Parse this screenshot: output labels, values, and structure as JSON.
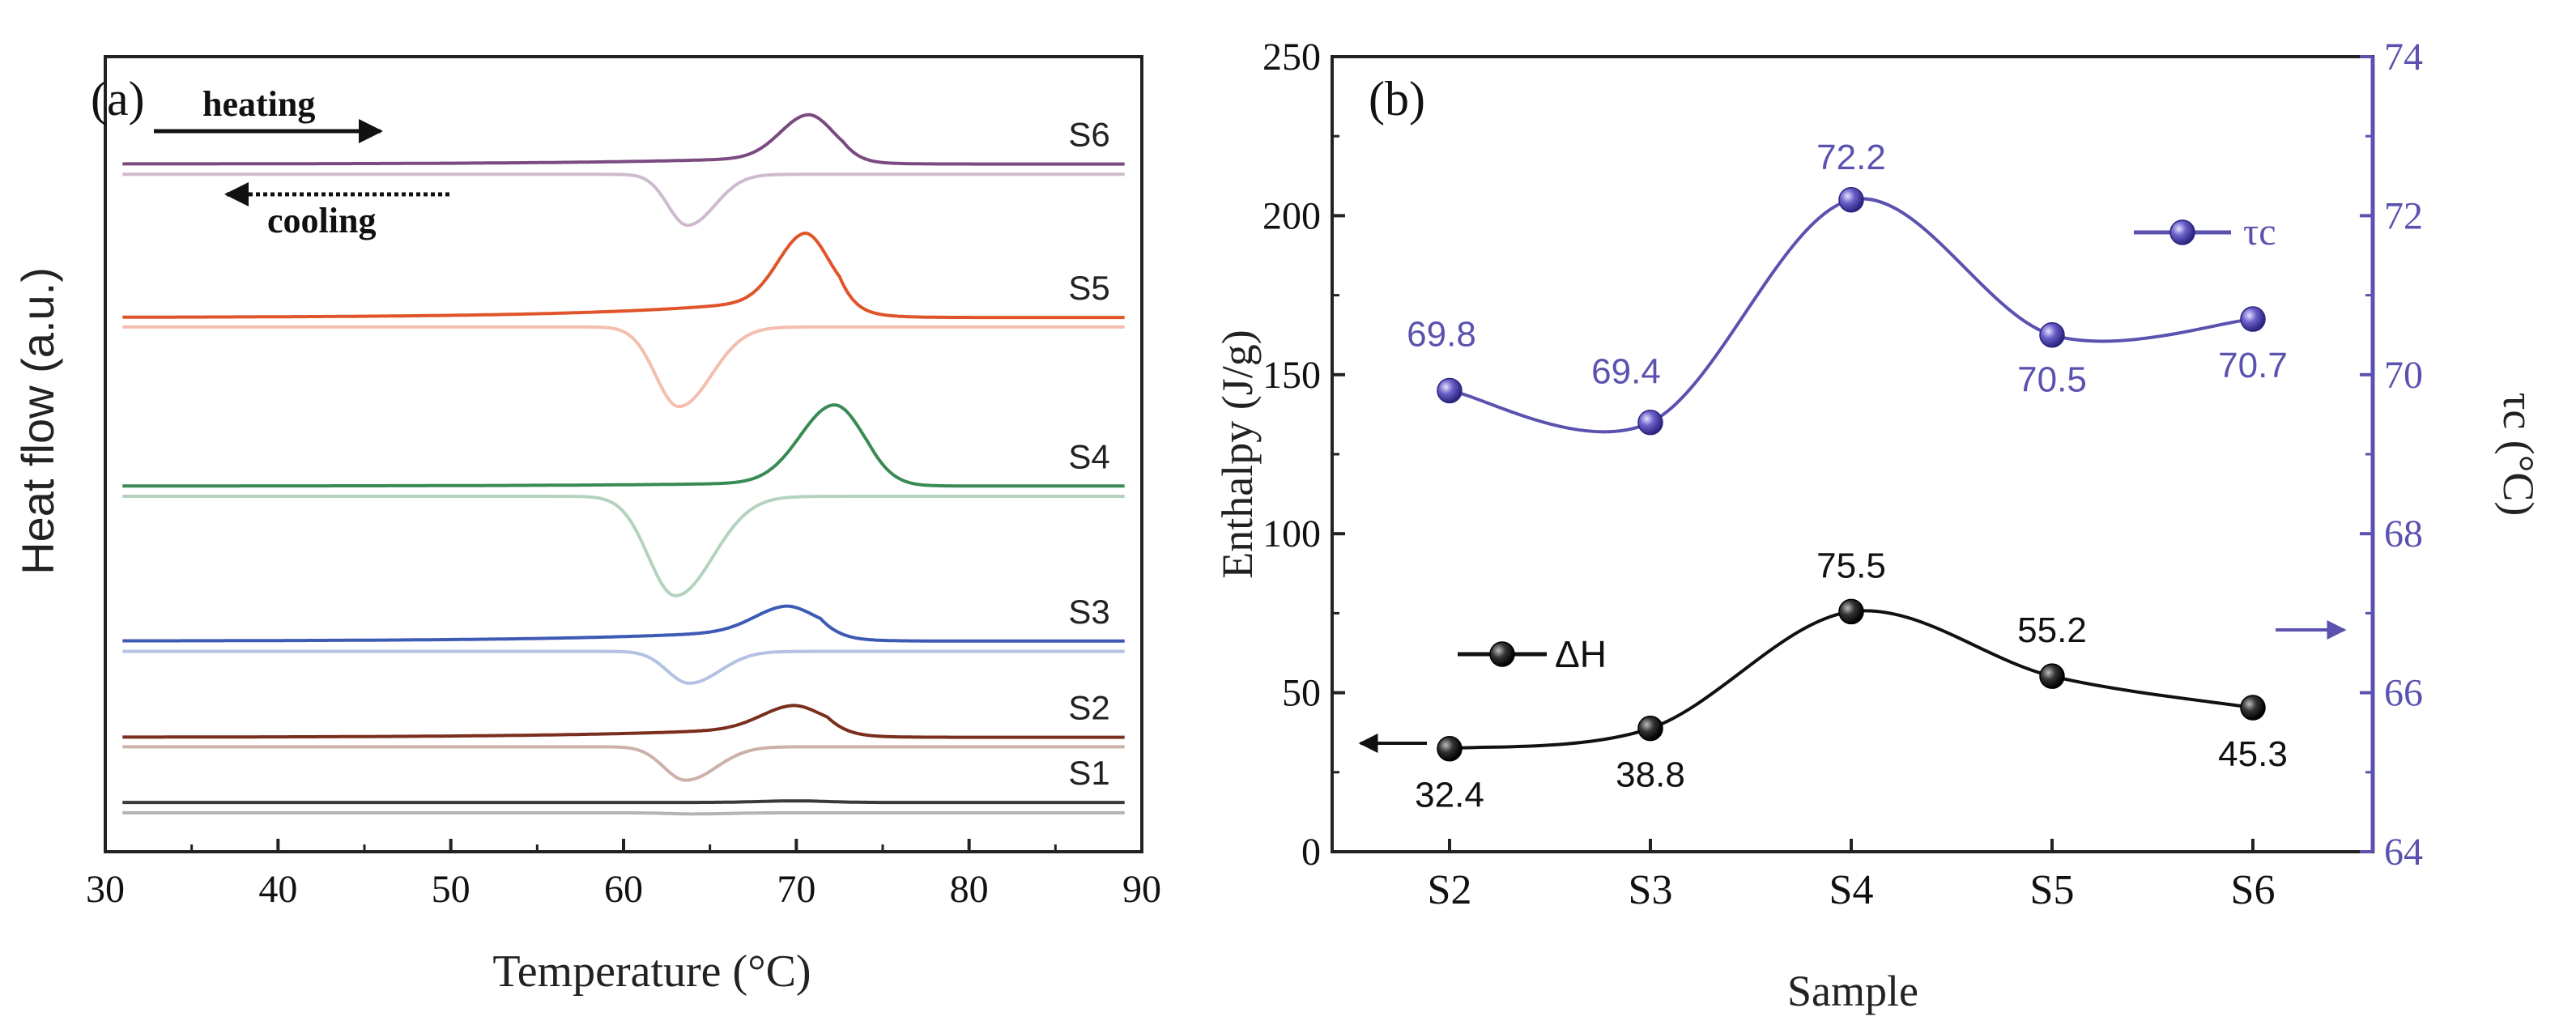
{
  "figure": {
    "panel_a_label": "(a)",
    "panel_b_label": "(b)",
    "heating_label": "heating",
    "cooling_label": "cooling"
  },
  "chart_data": [
    {
      "type": "line",
      "title": "",
      "panel": "(a)",
      "xlabel": "Temperature (°C)",
      "ylabel": "Heat flow (a.u.)",
      "xlim": [
        30,
        90
      ],
      "xticks": [
        30,
        40,
        50,
        60,
        70,
        80,
        90
      ],
      "ylim": [
        0,
        100
      ],
      "yticks_shown": false,
      "x_start": 31,
      "x_end": 89,
      "annotations": [
        "heating",
        "cooling"
      ],
      "series": [
        {
          "name": "S1",
          "color": "#3a3a3a",
          "heating": {
            "baseline": 6.2,
            "peak_T": 70,
            "peak_height": 0.2,
            "width": 3,
            "rise": 0
          },
          "cooling": {
            "baseline": 4.9,
            "peak_T": 64,
            "peak_depth": 0.15,
            "width": 2
          }
        },
        {
          "name": "S2",
          "color": "#7a2f1e",
          "heating": {
            "baseline": 14.4,
            "peak_T": 69.8,
            "peak_height": 2.6,
            "width": 2.6,
            "rise": 1.4
          },
          "cooling": {
            "baseline": 13.2,
            "peak_T": 63.6,
            "peak_depth": 4.2,
            "width": 1.8
          }
        },
        {
          "name": "S3",
          "color": "#3d5bb5",
          "heating": {
            "baseline": 26.5,
            "peak_T": 69.4,
            "peak_height": 2.8,
            "width": 2.6,
            "rise": 1.6
          },
          "cooling": {
            "baseline": 25.2,
            "peak_T": 63.8,
            "peak_depth": 4.0,
            "width": 1.8
          }
        },
        {
          "name": "S4",
          "color": "#3a8a55",
          "heating": {
            "baseline": 46.0,
            "peak_T": 72.2,
            "peak_height": 9.6,
            "width": 2.8,
            "rise": 0.6
          },
          "cooling": {
            "baseline": 44.7,
            "peak_T": 63.0,
            "peak_depth": 12.5,
            "width": 2.2
          }
        },
        {
          "name": "S5",
          "color": "#e0542a",
          "heating": {
            "baseline": 67.2,
            "peak_T": 70.5,
            "peak_height": 8.0,
            "width": 2.2,
            "rise": 2.6
          },
          "cooling": {
            "baseline": 66.0,
            "peak_T": 63.2,
            "peak_depth": 10.0,
            "width": 1.9
          }
        },
        {
          "name": "S6",
          "color": "#7b4a80",
          "heating": {
            "baseline": 86.5,
            "peak_T": 70.7,
            "peak_height": 5.2,
            "width": 2.3,
            "rise": 1.0
          },
          "cooling": {
            "baseline": 85.2,
            "peak_T": 63.7,
            "peak_depth": 6.4,
            "width": 1.6
          }
        }
      ]
    },
    {
      "type": "line",
      "title": "",
      "panel": "(b)",
      "categories": [
        "S2",
        "S3",
        "S4",
        "S5",
        "S6"
      ],
      "xlabel": "Sample",
      "ylabel": "Enthalpy (J/g)",
      "ylim": [
        0,
        250
      ],
      "yticks": [
        0,
        50,
        100,
        150,
        200,
        250
      ],
      "y2label": "τc (°C)",
      "y2lim": [
        64,
        74
      ],
      "y2ticks": [
        64,
        66,
        68,
        70,
        72,
        74
      ],
      "series": [
        {
          "name": "ΔH",
          "axis": "left",
          "color": "#111111",
          "values": [
            32.4,
            38.8,
            75.5,
            55.2,
            45.3
          ],
          "labels": [
            "32.4",
            "38.8",
            "75.5",
            "55.2",
            "45.3"
          ]
        },
        {
          "name": "τc",
          "axis": "right",
          "color": "#5b52b0",
          "values": [
            69.8,
            69.4,
            72.2,
            70.5,
            70.7
          ],
          "labels": [
            "69.8",
            "69.4",
            "72.2",
            "70.5",
            "70.7"
          ]
        }
      ]
    }
  ]
}
